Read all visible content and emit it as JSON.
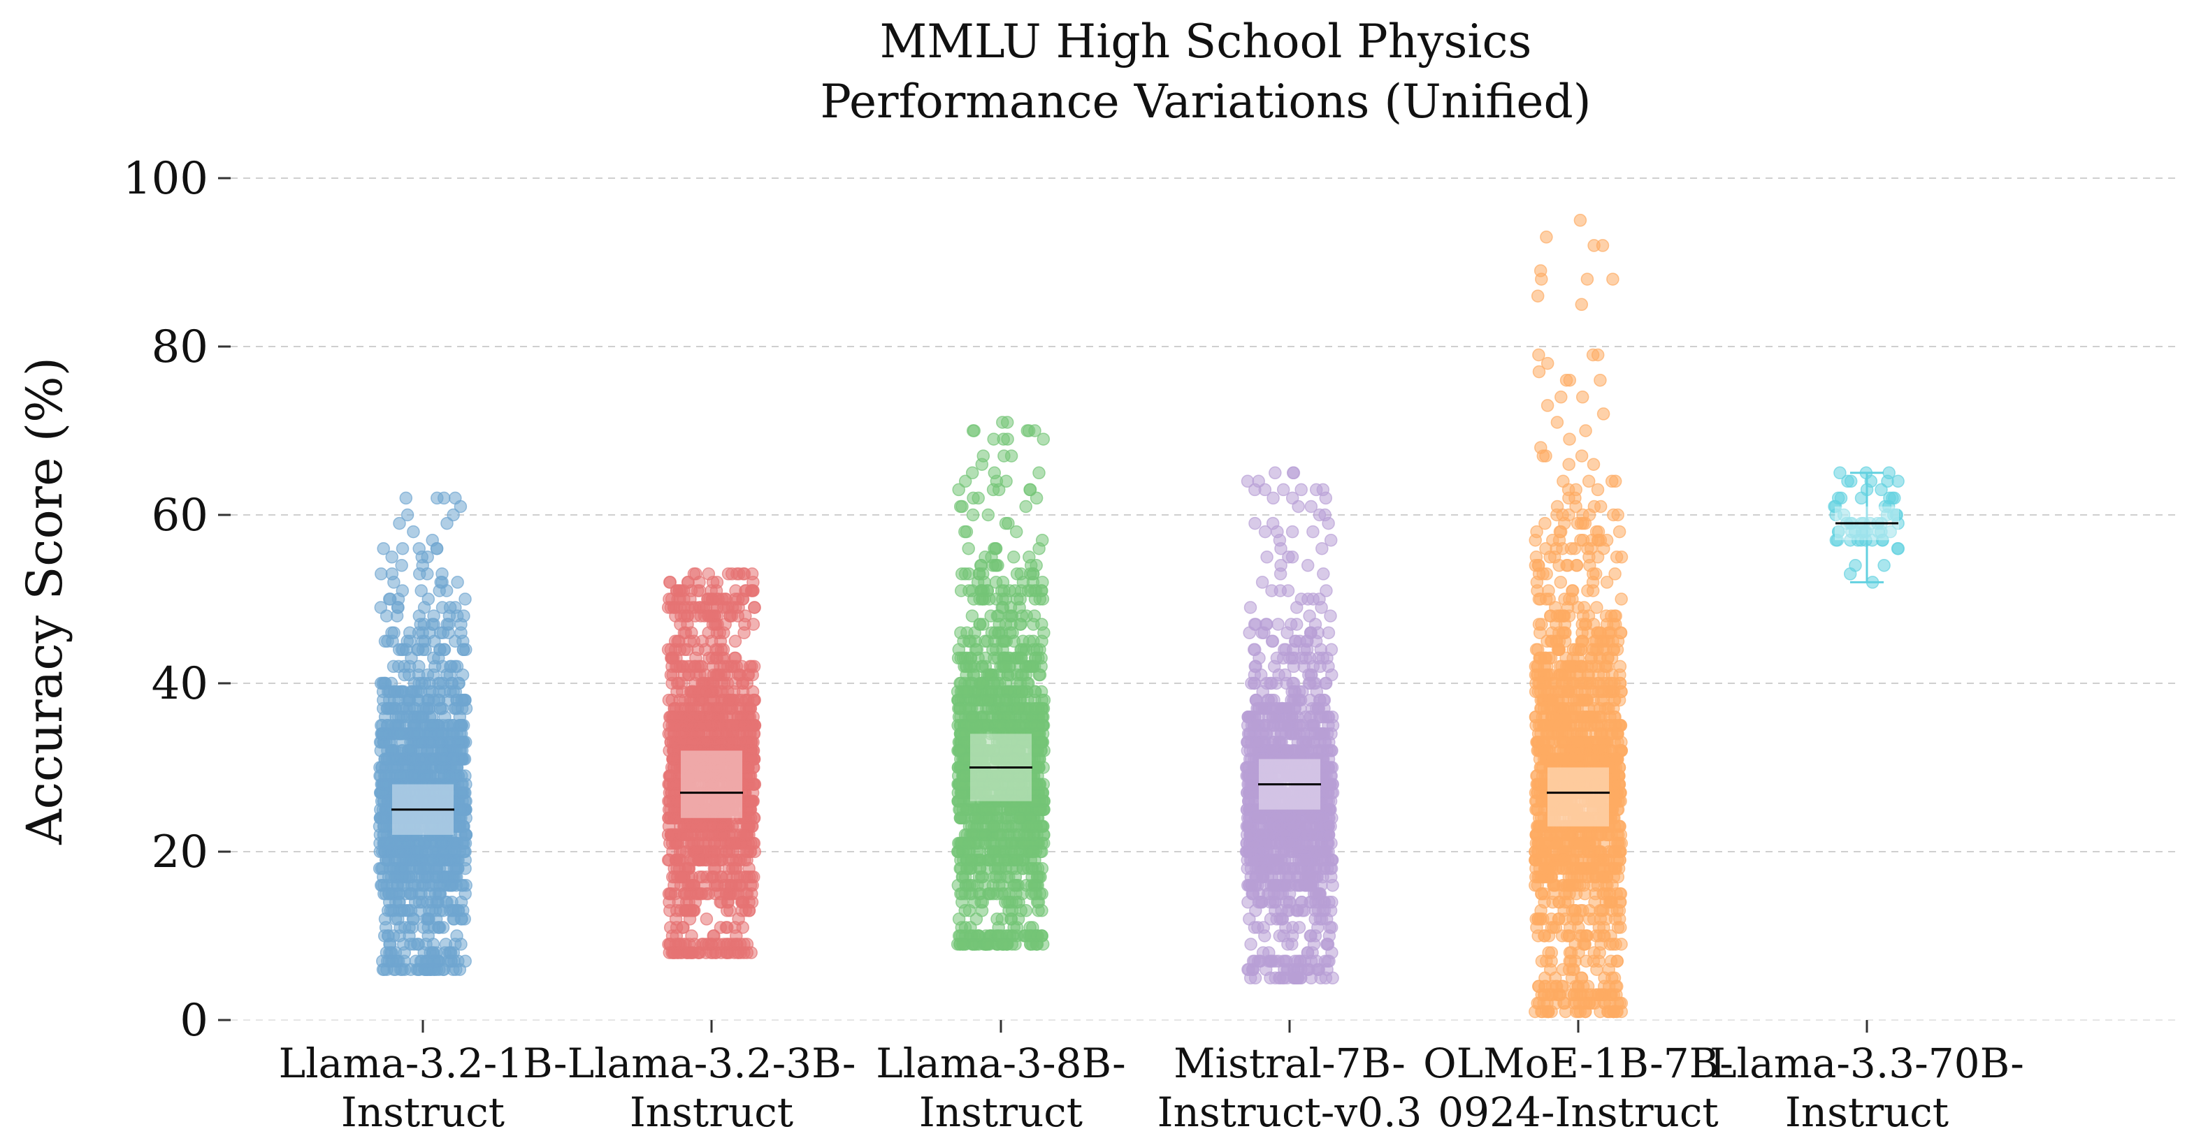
{
  "chart_data": {
    "type": "scatter",
    "title": [
      "MMLU High School Physics",
      "Performance Variations (Unified)"
    ],
    "xlabel": "",
    "ylabel": "Accuracy Score (%)",
    "ylim": [
      0,
      100
    ],
    "yticks": [
      0,
      20,
      40,
      60,
      80,
      100
    ],
    "grid": "y-dashed",
    "legend": "none",
    "categories": [
      [
        "Llama-3.2-1B-",
        "Instruct"
      ],
      [
        "Llama-3.2-3B-",
        "Instruct"
      ],
      [
        "Llama-3-8B-",
        "Instruct"
      ],
      [
        "Mistral-7B-",
        "Instruct-v0.3"
      ],
      [
        "OLMoE-1B-7B-",
        "0924-Instruct"
      ],
      [
        "Llama-3.3-70B-",
        "Instruct"
      ]
    ],
    "series": [
      {
        "color": "#6fa5d0",
        "median": 25,
        "q1": 22,
        "q3": 28,
        "min": 6,
        "max": 62,
        "core_low": 8,
        "core_high": 44,
        "n_points": 1500
      },
      {
        "color": "#e57373",
        "median": 27,
        "q1": 24,
        "q3": 32,
        "min": 8,
        "max": 53,
        "core_low": 9,
        "core_high": 48,
        "n_points": 1500
      },
      {
        "color": "#74c476",
        "median": 30,
        "q1": 26,
        "q3": 34,
        "min": 9,
        "max": 72,
        "core_low": 10,
        "core_high": 50,
        "n_points": 1500
      },
      {
        "color": "#b89fd6",
        "median": 28,
        "q1": 25,
        "q3": 31,
        "min": 5,
        "max": 65,
        "core_low": 8,
        "core_high": 43,
        "n_points": 1400
      },
      {
        "color": "#fdab62",
        "median": 27,
        "q1": 23,
        "q3": 30,
        "min": 1,
        "max": 95,
        "core_low": 4,
        "core_high": 54,
        "n_points": 1600
      },
      {
        "color": "#63d1e0",
        "median": 59,
        "q1": 57,
        "q3": 61,
        "min": 52,
        "max": 65,
        "core_low": 54,
        "core_high": 64,
        "n_points": 60
      }
    ]
  }
}
